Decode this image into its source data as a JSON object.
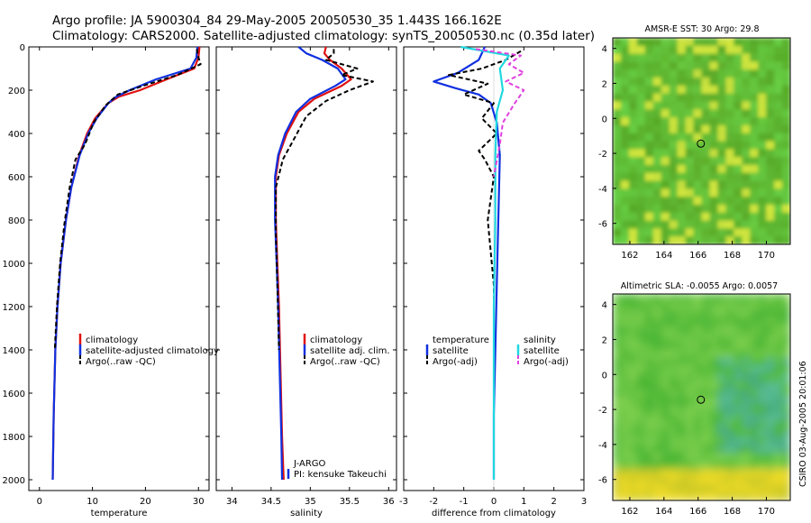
{
  "header": {
    "line1": "Argo profile: JA 5900304_84 29-May-2005 20050530_35 1.443S 166.162E",
    "line2": "Climatology: CARS2000. Satellite-adjusted climatology: synTS_20050530.nc (0.35d later)"
  },
  "colors": {
    "climatology": "#e01010",
    "satellite": "#1030e0",
    "argo": "#000000",
    "salinity": "#20d8e0",
    "salinity_argo": "#e040e0"
  },
  "chart_data": [
    {
      "type": "line",
      "id": "temperature-panel",
      "xlabel": "temperature",
      "ylim": [
        2050,
        0
      ],
      "xlim": [
        -2,
        32
      ],
      "xticks": [
        0,
        10,
        20,
        30
      ],
      "yticks": [
        0,
        200,
        400,
        600,
        800,
        1000,
        1200,
        1400,
        1600,
        1800,
        2000
      ],
      "legend": [
        "climatology",
        "satellite-adjusted climatology",
        "Argo(..raw -QC)"
      ],
      "series": [
        {
          "name": "climatology",
          "style": "solid",
          "color": "#e01010",
          "x": [
            30.2,
            30.0,
            29.2,
            24.0,
            19.0,
            15.0,
            13.0,
            10.5,
            9.0,
            7.5,
            6.0,
            5.0,
            4.0,
            3.4,
            3.0,
            2.7,
            2.5
          ],
          "y": [
            0,
            50,
            100,
            150,
            200,
            230,
            260,
            330,
            400,
            500,
            650,
            800,
            1000,
            1200,
            1400,
            1700,
            2000
          ]
        },
        {
          "name": "satellite-adjusted climatology",
          "style": "solid",
          "color": "#1030e0",
          "x": [
            29.8,
            29.6,
            28.5,
            22.0,
            17.0,
            14.5,
            13.0,
            10.8,
            9.2,
            7.6,
            6.0,
            5.0,
            4.0,
            3.4,
            3.0,
            2.7,
            2.5
          ],
          "y": [
            0,
            50,
            100,
            150,
            200,
            230,
            260,
            330,
            400,
            500,
            650,
            800,
            1000,
            1200,
            1400,
            1700,
            2000
          ]
        },
        {
          "name": "Argo(..raw -QC)",
          "style": "dashed",
          "color": "#000000",
          "x": [
            29.7,
            29.9,
            30.4,
            26.0,
            19.5,
            14.8,
            12.5,
            10.2,
            8.6,
            6.8,
            5.7,
            4.7,
            3.9,
            3.3,
            2.9
          ],
          "y": [
            10,
            40,
            80,
            130,
            180,
            220,
            270,
            350,
            450,
            520,
            650,
            820,
            1000,
            1200,
            1400
          ]
        }
      ]
    },
    {
      "type": "line",
      "id": "salinity-panel",
      "xlabel": "salinity",
      "ylim": [
        2050,
        0
      ],
      "xlim": [
        33.8,
        36.1
      ],
      "xticks": [
        34,
        34.5,
        35,
        35.5,
        36
      ],
      "xticklabels": [
        "34",
        "34.5",
        "35",
        "35.5",
        "36"
      ],
      "legend": [
        "climatology",
        "satellite adj. clim.",
        "Argo(..raw -QC)"
      ],
      "annotation": [
        "J-ARGO",
        "PI: kensuke Takeuchi"
      ],
      "series": [
        {
          "name": "climatology",
          "style": "solid",
          "color": "#e01010",
          "x": [
            35.2,
            35.18,
            35.25,
            35.4,
            35.52,
            35.4,
            35.05,
            34.85,
            34.7,
            34.6,
            34.56,
            34.56,
            34.58,
            34.6,
            34.62,
            34.64,
            34.66
          ],
          "y": [
            0,
            30,
            60,
            100,
            150,
            180,
            240,
            300,
            400,
            500,
            600,
            800,
            1000,
            1200,
            1500,
            1800,
            2000
          ]
        },
        {
          "name": "satellite adj. clim.",
          "style": "solid",
          "color": "#1030e0",
          "x": [
            34.85,
            34.95,
            35.15,
            35.35,
            35.45,
            35.32,
            35.0,
            34.82,
            34.68,
            34.59,
            34.55,
            34.55,
            34.57,
            34.59,
            34.61,
            34.63,
            34.64
          ],
          "y": [
            0,
            30,
            60,
            100,
            150,
            180,
            240,
            300,
            400,
            500,
            600,
            800,
            1000,
            1200,
            1500,
            1800,
            2000
          ]
        },
        {
          "name": "Argo(..raw -QC)",
          "style": "dashed",
          "color": "#000000",
          "x": [
            35.3,
            35.3,
            35.2,
            35.6,
            35.4,
            35.8,
            35.5,
            35.2,
            34.95,
            34.8,
            34.65,
            34.56,
            34.56,
            34.58,
            34.6
          ],
          "y": [
            10,
            30,
            60,
            100,
            130,
            160,
            200,
            250,
            320,
            420,
            520,
            650,
            850,
            1100,
            1400
          ]
        }
      ]
    },
    {
      "type": "line",
      "id": "difference-panel",
      "xlabel": "difference from climatology",
      "ylim": [
        2050,
        0
      ],
      "xlim": [
        -3,
        3
      ],
      "xticks": [
        -3,
        -2,
        -1,
        0,
        1,
        2,
        3
      ],
      "xticklabels": [
        "-3",
        "-2",
        "-1",
        "0",
        "1",
        "2",
        "3"
      ],
      "legend_left": [
        "temperature",
        "satellite",
        "Argo(-adj)"
      ],
      "legend_right": [
        "salinity",
        "satellite",
        "Argo(-adj)"
      ],
      "series": [
        {
          "name": "temperature satellite",
          "style": "solid",
          "color": "#1030e0",
          "x": [
            -0.3,
            -0.5,
            -1.2,
            -2.0,
            -1.3,
            -0.5,
            -0.1,
            0.1,
            0.2,
            0.15,
            0.1,
            0.05,
            0.0,
            0.0
          ],
          "y": [
            0,
            60,
            120,
            160,
            190,
            220,
            260,
            350,
            500,
            800,
            1100,
            1400,
            1700,
            2000
          ]
        },
        {
          "name": "temperature Argo(-adj)",
          "style": "dashed",
          "color": "#000000",
          "x": [
            0.9,
            0.4,
            -0.4,
            -1.5,
            -0.2,
            -1.0,
            0.0,
            -0.4,
            0.1,
            -0.5,
            -0.3,
            0.0,
            -0.2,
            0.0,
            0.0
          ],
          "y": [
            20,
            60,
            100,
            130,
            170,
            220,
            260,
            330,
            400,
            480,
            520,
            600,
            800,
            1100,
            1400
          ]
        },
        {
          "name": "salinity satellite",
          "style": "solid",
          "color": "#20d8e0",
          "x": [
            -1.1,
            0.5,
            0.2,
            0.3,
            0.1,
            0.05,
            0.05,
            0.0,
            0.0
          ],
          "y": [
            0,
            40,
            100,
            200,
            300,
            500,
            800,
            1200,
            2000
          ]
        },
        {
          "name": "salinity Argo(-adj)",
          "style": "dashed",
          "color": "#e040e0",
          "x": [
            -0.6,
            0.9,
            0.5,
            1.0,
            0.4,
            1.0,
            0.7,
            0.3,
            0.2,
            0.0
          ],
          "y": [
            10,
            40,
            80,
            120,
            160,
            200,
            260,
            350,
            450,
            600
          ]
        }
      ]
    },
    {
      "type": "heatmap",
      "id": "sst-map",
      "title": "AMSR-E SST: 30 Argo: 29.8",
      "xlim": [
        161.0,
        171.4
      ],
      "ylim": [
        -7.2,
        4.6
      ],
      "xticks": [
        162,
        164,
        166,
        168,
        170
      ],
      "yticks": [
        4,
        2,
        0,
        -2,
        -4,
        -6
      ],
      "marker": {
        "lon": 166.162,
        "lat": -1.443
      }
    },
    {
      "type": "heatmap",
      "id": "sla-map",
      "title": "Altimetric SLA: -0.0055 Argo: 0.0057",
      "xlim": [
        161.0,
        171.4
      ],
      "ylim": [
        -7.2,
        4.6
      ],
      "xticks": [
        162,
        164,
        166,
        168,
        170
      ],
      "yticks": [
        4,
        2,
        0,
        -2,
        -4,
        -6
      ],
      "marker": {
        "lon": 166.162,
        "lat": -1.443
      }
    }
  ],
  "footer": {
    "credit": "CSIRO 03-Aug-2005 20:01:06"
  }
}
